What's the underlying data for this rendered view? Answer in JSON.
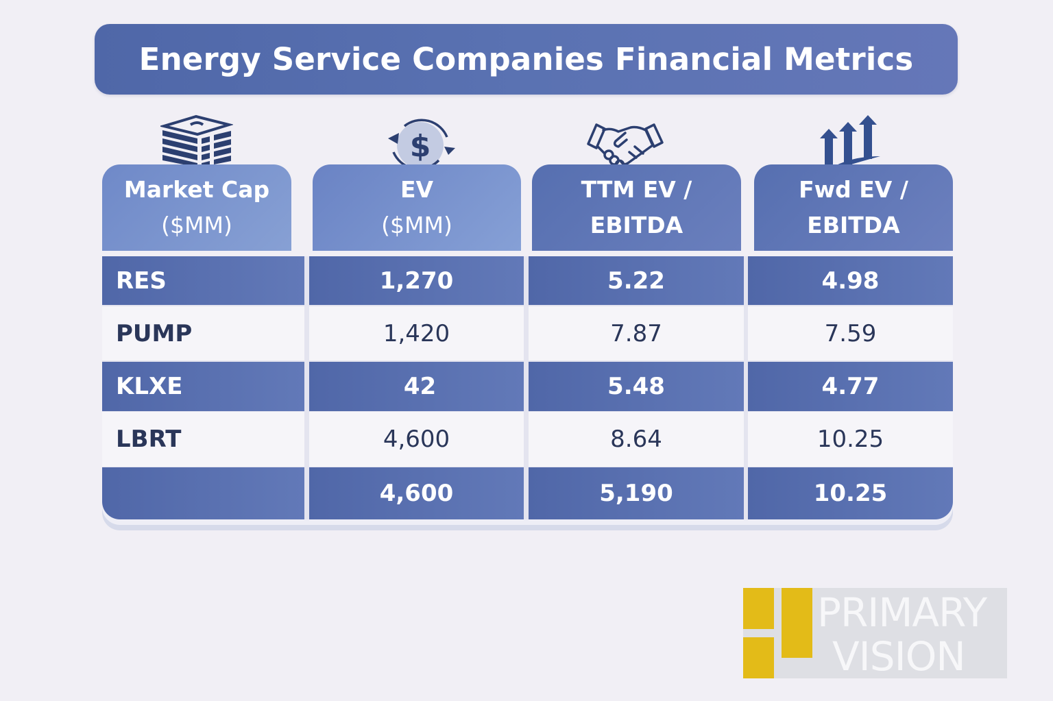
{
  "title": "Energy Service Companies Financial Metrics",
  "columns": [
    {
      "line1": "Market Cap",
      "line2": "($MM)",
      "icon": "stacked-money-icon"
    },
    {
      "line1": "EV",
      "line2": "($MM)",
      "icon": "dollar-cycle-icon"
    },
    {
      "line1": "TTM EV /",
      "line2": "EBITDA",
      "icon": "handshake-icon"
    },
    {
      "line1": "Fwd EV /",
      "line2": "EBITDA",
      "icon": "growth-arrows-icon"
    }
  ],
  "rows": [
    {
      "name": "RES",
      "ev": "1,270",
      "ttm": "5.22",
      "fwd": "4.98",
      "style": "dark"
    },
    {
      "name": "PUMP",
      "ev": "1,420",
      "ttm": "7.87",
      "fwd": "7.59",
      "style": "light"
    },
    {
      "name": "KLXE",
      "ev": "42",
      "ttm": "5.48",
      "fwd": "4.77",
      "style": "dark"
    },
    {
      "name": "LBRT",
      "ev": "4,600",
      "ttm": "8.64",
      "fwd": "10.25",
      "style": "light"
    },
    {
      "name": "",
      "ev": "4,600",
      "ttm": "5,190",
      "fwd": "10.25",
      "style": "dark"
    }
  ],
  "logo": {
    "line1": "PRIMARY",
    "line2": "VISION"
  },
  "colors": {
    "primary": "#5067a8",
    "accent_header": "#7b95ce",
    "row_light": "#f6f5f9",
    "text_dark": "#2a3659",
    "logo_yellow": "#e3bb18"
  }
}
